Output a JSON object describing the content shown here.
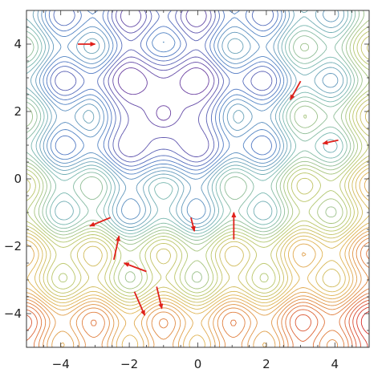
{
  "chart_data": {
    "type": "contour",
    "title": "",
    "xlabel": "",
    "ylabel": "",
    "xlim": [
      -5,
      5
    ],
    "ylim": [
      -5,
      5
    ],
    "x_ticks": [
      {
        "value": -4,
        "label": "−4"
      },
      {
        "value": -2,
        "label": "−2"
      },
      {
        "value": 0,
        "label": "0"
      },
      {
        "value": 2,
        "label": "2"
      },
      {
        "value": 4,
        "label": "4"
      }
    ],
    "y_ticks": [
      {
        "value": 4,
        "label": "4"
      },
      {
        "value": 2,
        "label": "2"
      },
      {
        "value": 0,
        "label": "0"
      },
      {
        "value": -2,
        "label": "−2"
      },
      {
        "value": -4,
        "label": "−4"
      }
    ],
    "minimum": {
      "x": -1,
      "y": 1.9
    },
    "colormap": [
      "#6a3fa0",
      "#4f7fc6",
      "#7ab8b0",
      "#b6c86a",
      "#e0b453",
      "#e07a3c",
      "#d62d2a"
    ],
    "arrow_color": "#e0201a",
    "arrows": [
      {
        "x1": -3.5,
        "y1": 4.0,
        "x2": -3.0,
        "y2": 4.0
      },
      {
        "x1": 3.0,
        "y1": 2.9,
        "x2": 2.7,
        "y2": 2.35
      },
      {
        "x1": 4.1,
        "y1": 1.15,
        "x2": 3.65,
        "y2": 1.05
      },
      {
        "x1": -2.55,
        "y1": -1.15,
        "x2": -3.15,
        "y2": -1.4
      },
      {
        "x1": -0.2,
        "y1": -1.15,
        "x2": -0.1,
        "y2": -1.55
      },
      {
        "x1": 1.05,
        "y1": -1.8,
        "x2": 1.05,
        "y2": -1.0
      },
      {
        "x1": -2.45,
        "y1": -2.4,
        "x2": -2.3,
        "y2": -1.7
      },
      {
        "x1": -1.5,
        "y1": -2.75,
        "x2": -2.15,
        "y2": -2.5
      },
      {
        "x1": -1.85,
        "y1": -3.35,
        "x2": -1.55,
        "y2": -4.05
      },
      {
        "x1": -1.2,
        "y1": -3.2,
        "x2": -1.05,
        "y2": -3.85
      }
    ]
  }
}
